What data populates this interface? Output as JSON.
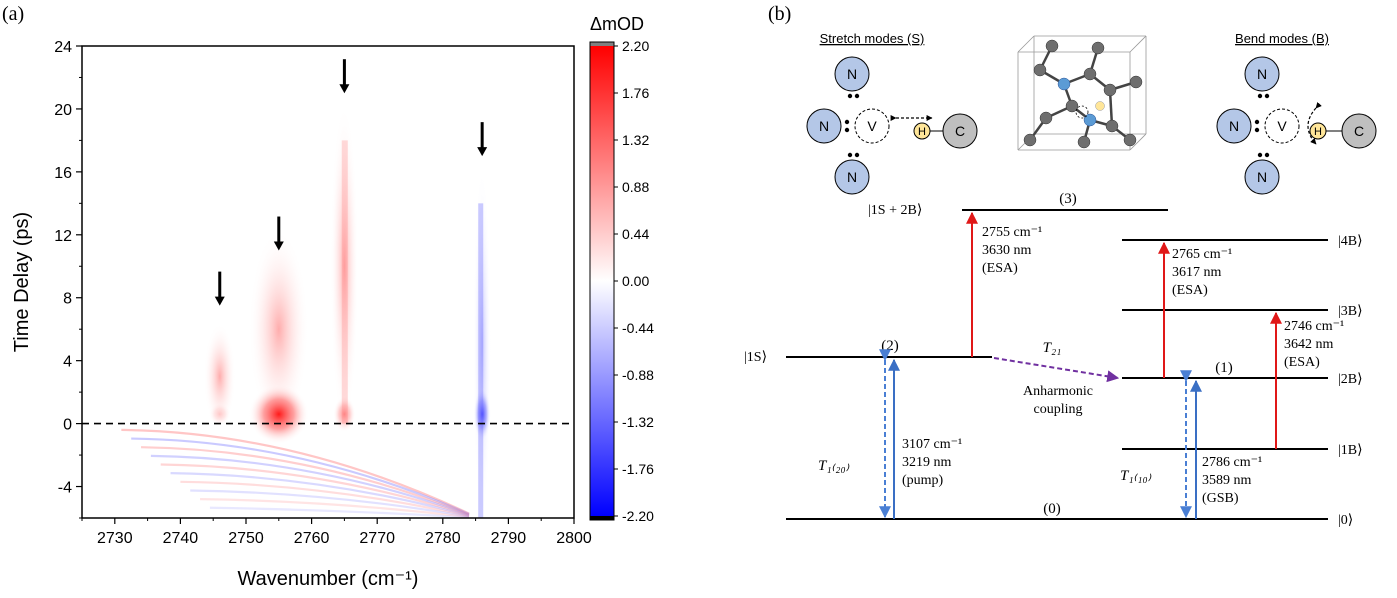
{
  "panel_labels": {
    "a": "(a)",
    "b": "(b)"
  },
  "chart_data": [
    {
      "type": "heatmap",
      "title": "",
      "xlabel": "Wavenumber (cm⁻¹)",
      "ylabel": "Time Delay (ps)",
      "xlim": [
        2725,
        2800
      ],
      "ylim": [
        -6,
        24
      ],
      "x_ticks": [
        2730,
        2740,
        2750,
        2760,
        2770,
        2780,
        2790,
        2800
      ],
      "y_ticks": [
        -4,
        0,
        4,
        8,
        12,
        16,
        20,
        24
      ],
      "colorbar": {
        "label": "ΔmOD",
        "ticks": [
          2.2,
          1.76,
          1.32,
          0.88,
          0.44,
          0.0,
          -0.44,
          -0.88,
          -1.32,
          -1.76,
          -2.2
        ],
        "tick_labels": [
          "2.20",
          "1.76",
          "1.32",
          "0.88",
          "0.44",
          "0.00",
          "-0.44",
          "-0.88",
          "-1.32",
          "-1.76",
          "-2.20"
        ],
        "range": [
          -2.2,
          2.2
        ],
        "colors": {
          "max": "#ff0000",
          "zero": "#ffffff",
          "min": "#0000ff",
          "over": "#808080",
          "under": "#000000"
        }
      },
      "zero_line": {
        "y": 0,
        "style": "dashed"
      },
      "features": [
        {
          "name": "peak-2746",
          "center_x": 2746,
          "sign": "positive",
          "amplitude": 0.35,
          "t_extent": [
            0,
            6
          ]
        },
        {
          "name": "peak-2755",
          "center_x": 2755,
          "sign": "positive",
          "amplitude": 1.6,
          "t_extent": [
            0,
            12
          ]
        },
        {
          "name": "peak-2765",
          "center_x": 2765,
          "sign": "positive",
          "amplitude": 0.8,
          "t_extent": [
            0,
            20
          ]
        },
        {
          "name": "peak-2786",
          "center_x": 2786,
          "sign": "negative",
          "amplitude": -1.4,
          "t_extent": [
            -6,
            16
          ]
        }
      ],
      "arrows": [
        {
          "x": 2746,
          "y_tip": 7.5
        },
        {
          "x": 2755,
          "y_tip": 11
        },
        {
          "x": 2765,
          "y_tip": 21
        },
        {
          "x": 2786,
          "y_tip": 17
        }
      ]
    },
    {
      "type": "diagram",
      "title": "Energy level diagram",
      "insets": {
        "stretch_title": "Stretch modes (S)",
        "bend_title": "Bend modes (B)",
        "atoms": {
          "N": "N",
          "V": "V",
          "H": "H",
          "C": "C"
        }
      },
      "levels": [
        {
          "id": "0",
          "label": "(0)",
          "ket": "|0⟩"
        },
        {
          "id": "1S",
          "label": "(2)",
          "ket": "|1S⟩"
        },
        {
          "id": "1S2B",
          "label": "(3)",
          "ket": "|1S + 2B⟩"
        },
        {
          "id": "1B",
          "label": "",
          "ket": "|1B⟩"
        },
        {
          "id": "2B",
          "label": "(1)",
          "ket": "|2B⟩"
        },
        {
          "id": "3B",
          "label": "",
          "ket": "|3B⟩"
        },
        {
          "id": "4B",
          "label": "",
          "ket": "|4B⟩"
        }
      ],
      "transitions": [
        {
          "id": "pump",
          "lines": [
            "3107 cm⁻¹",
            "3219 nm",
            "(pump)"
          ],
          "color": "#3a6fc4"
        },
        {
          "id": "esa-1s",
          "lines": [
            "2755 cm⁻¹",
            "3630 nm",
            "(ESA)"
          ],
          "color": "#e01818"
        },
        {
          "id": "esa-4b",
          "lines": [
            "2765 cm⁻¹",
            "3617 nm",
            "(ESA)"
          ],
          "color": "#e01818"
        },
        {
          "id": "esa-3b",
          "lines": [
            "2746 cm⁻¹",
            "3642 nm",
            "(ESA)"
          ],
          "color": "#e01818"
        },
        {
          "id": "gsb",
          "lines": [
            "2786 cm⁻¹",
            "3589 nm",
            "(GSB)"
          ],
          "color": "#3a6fc4"
        }
      ],
      "relaxations": {
        "t120": "T₁₍₂₀₎",
        "t110": "T₁₍₁₀₎",
        "t21": "T₂₁",
        "coupling": [
          "Anharmonic",
          "coupling"
        ]
      }
    }
  ]
}
